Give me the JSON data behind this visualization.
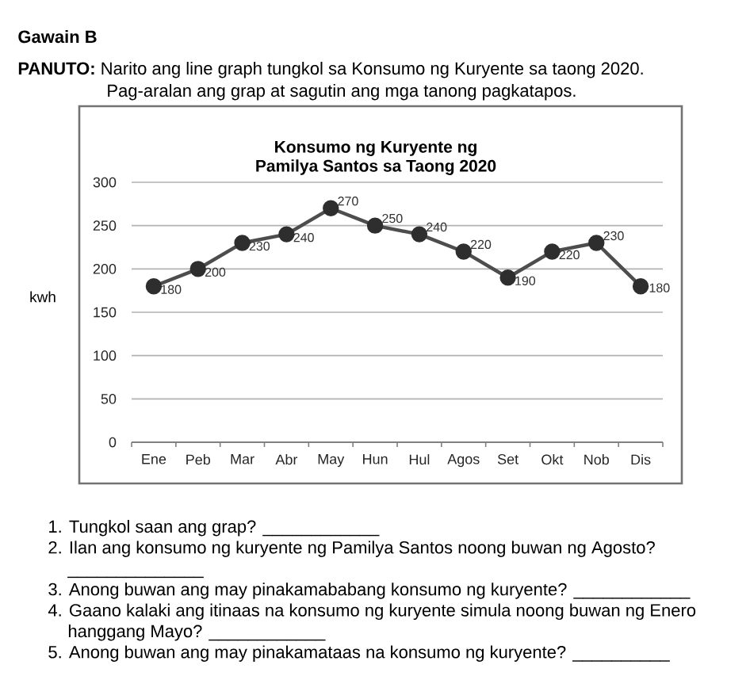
{
  "chart_data": {
    "type": "line",
    "title": "Konsumo ng Kuryente ng Pamilya Santos sa Taong 2020",
    "ylabel": "kwh",
    "categories": [
      "Ene",
      "Peb",
      "Mar",
      "Abr",
      "May",
      "Hun",
      "Hul",
      "Agos",
      "Set",
      "Okt",
      "Nob",
      "Dis"
    ],
    "values": [
      180,
      200,
      230,
      240,
      270,
      250,
      240,
      220,
      190,
      220,
      230,
      180
    ],
    "color": "#4d4d4d",
    "ylim": [
      0,
      300
    ],
    "yticks": [
      0,
      50,
      100,
      150,
      200,
      250,
      300
    ],
    "grid": "y",
    "marker": "circle",
    "line_style": "solid",
    "data_labels": true,
    "annotations": [
      "Gawain B",
      "**PANUTO:** Narito ang line graph tungkol sa Konsumo ng Kuryente sa taong 2020. Pag-aralan ang grap at sagutin ang mga tanong pagkatapos.",
      "1. Tungkol saan ang grap? ____________",
      "2. Ilan ang konsumo ng kuryente ng Pamilya Santos noong buwan ng Agosto? ______________",
      "3. Anong buwan ang may pinakamababang konsumo ng kuryente? ____________",
      "4. Gaano kalaki ang itinaas na konsumo ng kuryente simula noong buwan ng Enero hanggang Mayo? ____________",
      "5. Anong buwan ang may pinakamataas na konsumo ng kuryente? __________"
    ]
  }
}
